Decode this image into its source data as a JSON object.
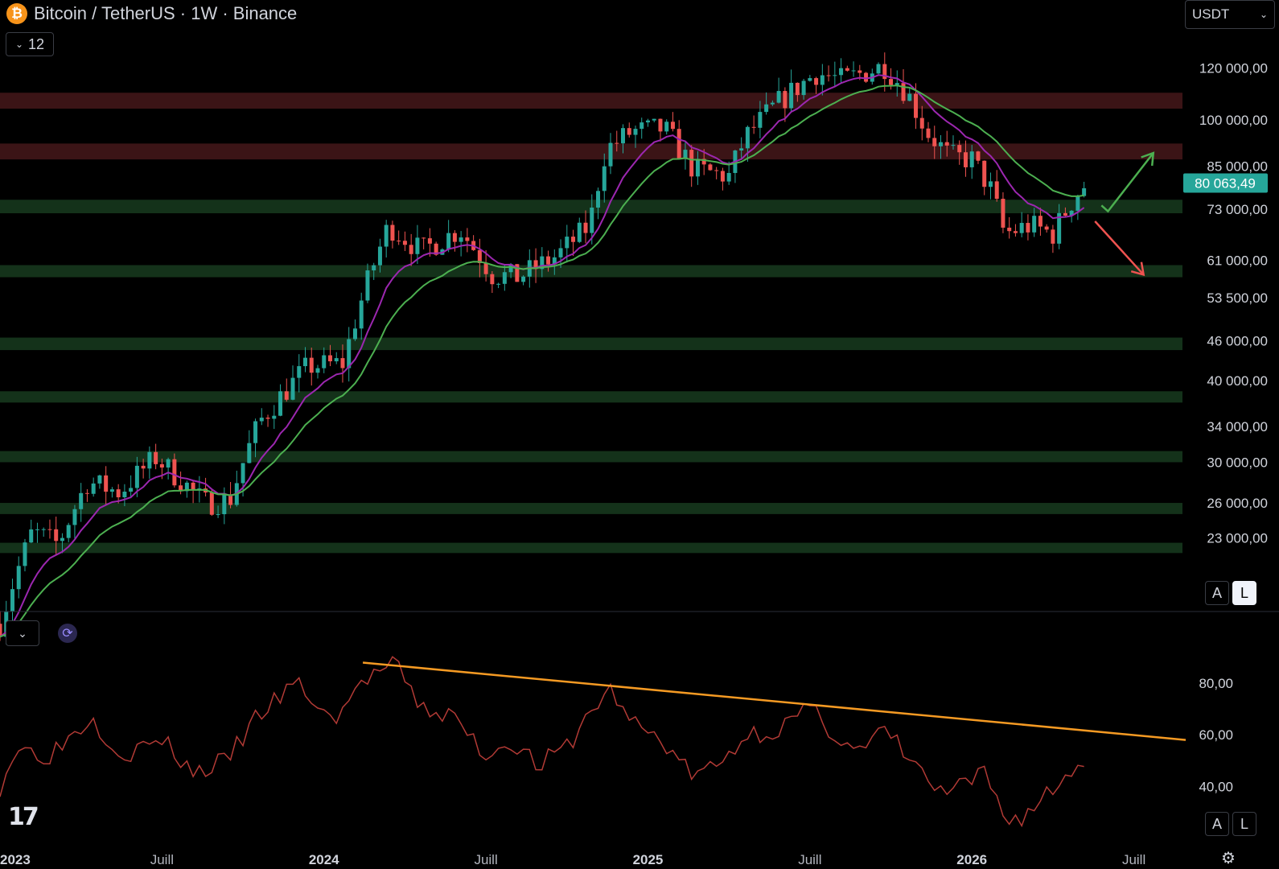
{
  "header": {
    "symbol_icon": "bitcoin-icon",
    "title": "Bitcoin / TetherUS · 1W · Binance",
    "collapse_count": "12"
  },
  "currency_selector": {
    "value": "USDT"
  },
  "price_axis": {
    "ticks": [
      {
        "label": "120 000,00",
        "value": 120000
      },
      {
        "label": "100 000,00",
        "value": 100000
      },
      {
        "label": "85 000,00",
        "value": 85000
      },
      {
        "label": "73 000,00",
        "value": 73000
      },
      {
        "label": "61 000,00",
        "value": 61000
      },
      {
        "label": "53 500,00",
        "value": 53500
      },
      {
        "label": "46 000,00",
        "value": 46000
      },
      {
        "label": "40 000,00",
        "value": 40000
      },
      {
        "label": "34 000,00",
        "value": 34000
      },
      {
        "label": "30 000,00",
        "value": 30000
      },
      {
        "label": "26 000,00",
        "value": 26000
      },
      {
        "label": "23 000,00",
        "value": 23000
      }
    ],
    "current_price": {
      "label": "80 063,49",
      "value": 80063.49,
      "color": "#26a69a"
    },
    "scale_buttons": [
      "A",
      "L"
    ]
  },
  "rsi_axis": {
    "ticks": [
      {
        "label": "80,00",
        "value": 80
      },
      {
        "label": "60,00",
        "value": 60
      },
      {
        "label": "40,00",
        "value": 40
      }
    ]
  },
  "time_axis": {
    "labels": [
      {
        "label": "2023",
        "t": 2023.0,
        "bold": true
      },
      {
        "label": "Juill",
        "t": 2023.5,
        "bold": false
      },
      {
        "label": "2024",
        "t": 2024.0,
        "bold": true
      },
      {
        "label": "Juill",
        "t": 2024.5,
        "bold": false
      },
      {
        "label": "2025",
        "t": 2025.0,
        "bold": true
      },
      {
        "label": "Juill",
        "t": 2025.5,
        "bold": false
      },
      {
        "label": "2026",
        "t": 2026.0,
        "bold": true
      },
      {
        "label": "Juill",
        "t": 2026.5,
        "bold": false
      }
    ]
  },
  "chart_data": {
    "type": "candlestick",
    "log_scale": true,
    "y_range": [
      18000,
      140000
    ],
    "x_range": [
      2023.0,
      2026.65
    ],
    "colors": {
      "up": "#26a69a",
      "down": "#ef5350",
      "ema_fast": "#9c27b0",
      "ema_slow": "#4caf50",
      "resistance": "#3b1416",
      "support": "#14321a",
      "rsi": "#b23a35",
      "trendline": "#f59a23"
    },
    "resistance_zones": [
      [
        104000,
        110000
      ],
      [
        87000,
        92000
      ]
    ],
    "support_zones": [
      [
        72000,
        75500
      ],
      [
        57500,
        60000
      ],
      [
        44500,
        46500
      ],
      [
        37000,
        38500
      ],
      [
        30000,
        31200
      ],
      [
        25000,
        26000
      ],
      [
        21800,
        22600
      ]
    ],
    "keypoints": [
      [
        2023.0,
        17000
      ],
      [
        2023.1,
        23500
      ],
      [
        2023.18,
        22500
      ],
      [
        2023.27,
        28000
      ],
      [
        2023.37,
        27000
      ],
      [
        2023.48,
        30500
      ],
      [
        2023.63,
        26000
      ],
      [
        2023.71,
        26300
      ],
      [
        2023.8,
        34500
      ],
      [
        2023.95,
        42000
      ],
      [
        2024.06,
        42500
      ],
      [
        2024.2,
        69000
      ],
      [
        2024.3,
        63000
      ],
      [
        2024.42,
        68000
      ],
      [
        2024.52,
        58000
      ],
      [
        2024.6,
        57500
      ],
      [
        2024.72,
        62000
      ],
      [
        2024.82,
        69000
      ],
      [
        2024.87,
        90000
      ],
      [
        2024.95,
        96000
      ],
      [
        2025.05,
        97000
      ],
      [
        2025.14,
        84000
      ],
      [
        2025.25,
        82000
      ],
      [
        2025.3,
        94000
      ],
      [
        2025.4,
        106000
      ],
      [
        2025.52,
        118000
      ],
      [
        2025.6,
        115000
      ],
      [
        2025.73,
        121000
      ],
      [
        2025.8,
        110000
      ],
      [
        2025.86,
        96000
      ],
      [
        2025.93,
        88000
      ],
      [
        2026.0,
        87000
      ],
      [
        2026.06,
        78000
      ],
      [
        2026.1,
        67000
      ],
      [
        2026.18,
        69000
      ],
      [
        2026.25,
        67000
      ],
      [
        2026.3,
        74000
      ],
      [
        2026.34,
        79000
      ],
      [
        2026.36,
        80000
      ]
    ],
    "trend_projections": [
      {
        "direction": "up",
        "color": "#4caf50",
        "from": [
          2026.4,
          74000
        ],
        "via": [
          2026.42,
          72500
        ],
        "to": [
          2026.56,
          89000
        ]
      },
      {
        "direction": "down",
        "color": "#ef5350",
        "from": [
          2026.38,
          70000
        ],
        "to": [
          2026.53,
          58000
        ]
      }
    ],
    "rsi": {
      "range": [
        22,
        100
      ],
      "keypoints": [
        [
          2023.0,
          40
        ],
        [
          2023.05,
          55
        ],
        [
          2023.15,
          52
        ],
        [
          2023.28,
          67
        ],
        [
          2023.38,
          52
        ],
        [
          2023.5,
          58
        ],
        [
          2023.6,
          45
        ],
        [
          2023.7,
          50
        ],
        [
          2023.8,
          68
        ],
        [
          2023.92,
          80
        ],
        [
          2024.02,
          65
        ],
        [
          2024.14,
          83
        ],
        [
          2024.22,
          87
        ],
        [
          2024.3,
          70
        ],
        [
          2024.4,
          67
        ],
        [
          2024.5,
          52
        ],
        [
          2024.58,
          58
        ],
        [
          2024.66,
          48
        ],
        [
          2024.75,
          55
        ],
        [
          2024.82,
          68
        ],
        [
          2024.88,
          78
        ],
        [
          2024.95,
          65
        ],
        [
          2025.05,
          57
        ],
        [
          2025.14,
          44
        ],
        [
          2025.22,
          48
        ],
        [
          2025.3,
          60
        ],
        [
          2025.4,
          62
        ],
        [
          2025.5,
          70
        ],
        [
          2025.58,
          60
        ],
        [
          2025.66,
          53
        ],
        [
          2025.73,
          62
        ],
        [
          2025.82,
          49
        ],
        [
          2025.9,
          37
        ],
        [
          2025.98,
          40
        ],
        [
          2026.04,
          45
        ],
        [
          2026.1,
          28
        ],
        [
          2026.16,
          28
        ],
        [
          2026.22,
          36
        ],
        [
          2026.28,
          42
        ],
        [
          2026.34,
          50
        ],
        [
          2026.36,
          50
        ]
      ],
      "trendline": [
        [
          2024.12,
          88
        ],
        [
          2026.66,
          58
        ]
      ]
    }
  }
}
